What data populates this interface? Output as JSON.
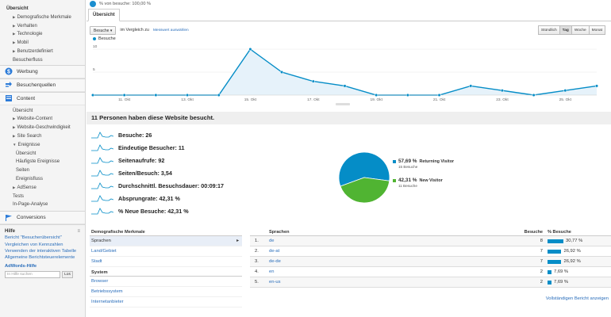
{
  "topbar": {
    "text": "% von besuche: 100,00 %"
  },
  "tab": {
    "label": "Übersicht"
  },
  "sidebar": {
    "overview": "Übersicht",
    "visitor_items": [
      {
        "label": "Demografische Merkmale",
        "tri": true
      },
      {
        "label": "Verhalten",
        "tri": true
      },
      {
        "label": "Technologie",
        "tri": true
      },
      {
        "label": "Mobil",
        "tri": true
      },
      {
        "label": "Benutzerdefiniert",
        "tri": true
      },
      {
        "label": "Besucherfluss",
        "tri": false
      }
    ],
    "werbung": "Werbung",
    "besucherquellen": "Besucherquellen",
    "content": "Content",
    "content_items": [
      {
        "label": "Übersicht",
        "tri": false,
        "cls": "sub"
      },
      {
        "label": "Website-Content",
        "tri": true,
        "cls": "sub"
      },
      {
        "label": "Website-Geschwindigkeit",
        "tri": true,
        "cls": "sub"
      },
      {
        "label": "Site Search",
        "tri": true,
        "cls": "sub"
      },
      {
        "label": "Ereignisse",
        "tri": true,
        "down": true,
        "cls": "sub"
      },
      {
        "label": "Übersicht",
        "tri": false,
        "cls": "sub2"
      },
      {
        "label": "Häufigste Ereignisse",
        "tri": false,
        "cls": "sub2"
      },
      {
        "label": "Seiten",
        "tri": false,
        "cls": "sub2"
      },
      {
        "label": "Ereignisfluss",
        "tri": false,
        "cls": "sub2"
      },
      {
        "label": "AdSense",
        "tri": true,
        "cls": "sub"
      },
      {
        "label": "Tests",
        "tri": false,
        "cls": "sub"
      },
      {
        "label": "In-Page-Analyse",
        "tri": false,
        "cls": "sub"
      }
    ],
    "conversions": "Conversions",
    "help": {
      "title": "Hilfe",
      "links": [
        "Bericht \"Besucherübersicht\"",
        "Vergleichen von Kennzahlen",
        "Verwenden der interaktiven Tabelle",
        "Allgemeine Berichtsteuerelemente"
      ],
      "adwords": "AdWords-Hilfe",
      "search_placeholder": "In Hilfe suchen",
      "search_btn": "Los"
    }
  },
  "controls": {
    "metric_dropdown": "Besuche",
    "compare_text": "im Vergleich zu",
    "select_metric": "Messwert auswählen",
    "granularity": [
      "Stündlich",
      "Tag",
      "Woche",
      "Monat"
    ],
    "active_granularity": "Tag"
  },
  "chart_data": {
    "type": "area",
    "series": [
      {
        "name": "Besuche",
        "values": [
          0,
          0,
          0,
          0,
          0,
          10,
          5,
          3,
          2,
          0,
          0,
          0,
          2,
          1,
          0,
          1,
          2
        ]
      }
    ],
    "x_ticks": [
      "11. Okt",
      "13. Okt",
      "15. Okt",
      "17. Okt",
      "19. Okt",
      "21. Okt",
      "23. Okt",
      "25. Okt"
    ],
    "y_ticks": [
      "10",
      "5"
    ],
    "ylim": [
      0,
      10.7
    ],
    "grid": true,
    "color": "#058dc7"
  },
  "summary": {
    "title": "11 Personen haben diese Website besucht.",
    "metrics": [
      "Besuche: 26",
      "Eindeutige Besucher: 11",
      "Seitenaufrufe: 92",
      "Seiten/Besuch: 3,54",
      "Durchschnittl. Besuchsdauer: 00:09:17",
      "Absprungrate: 42,31 %",
      "% Neue Besuche: 42,31 %"
    ]
  },
  "pie": {
    "slices": [
      {
        "label": "Returning Visitor",
        "pct": "57,69 %",
        "visits": "15 Besuche",
        "value": 57.69,
        "color": "#058dc7"
      },
      {
        "label": "New Visitor",
        "pct": "42,31 %",
        "visits": "11 Besuche",
        "value": 42.31,
        "color": "#50b432"
      }
    ]
  },
  "left_table": {
    "header": "Demografische Merkmale",
    "rows": [
      "Sprachen",
      "Land/Gebiet",
      "Stadt"
    ],
    "section2": "System",
    "rows2": [
      "Browser",
      "Betriebssystem",
      "Internetanbieter"
    ]
  },
  "right_table": {
    "headers": {
      "name": "Sprachen",
      "visits": "Besuche",
      "pct": "% Besuche"
    },
    "rows": [
      {
        "idx": "1.",
        "name": "de",
        "visits": "8",
        "pct": "30,77 %",
        "value": 30.77
      },
      {
        "idx": "2.",
        "name": "de-at",
        "visits": "7",
        "pct": "26,92 %",
        "value": 26.92
      },
      {
        "idx": "3.",
        "name": "de-de",
        "visits": "7",
        "pct": "26,92 %",
        "value": 26.92
      },
      {
        "idx": "4.",
        "name": "en",
        "visits": "2",
        "pct": "7,69 %",
        "value": 7.69
      },
      {
        "idx": "5.",
        "name": "en-us",
        "visits": "2",
        "pct": "7,69 %",
        "value": 7.69
      }
    ],
    "full_report": "Vollständigen Bericht anzeigen"
  }
}
